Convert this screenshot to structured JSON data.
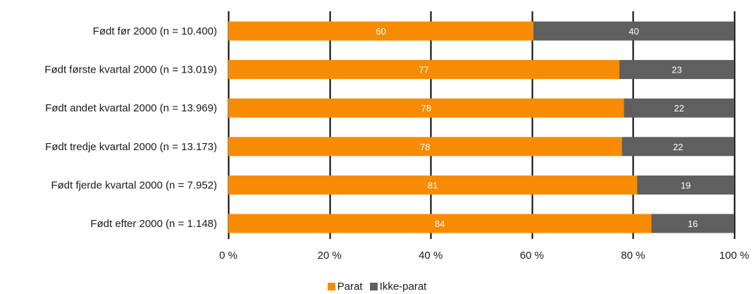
{
  "chart_data": {
    "type": "bar",
    "orientation": "horizontal",
    "stacked": true,
    "categories": [
      "Født før 2000 (n = 10.400)",
      "Født første kvartal 2000 (n = 13.019)",
      "Født andet kvartal 2000 (n = 13.969)",
      "Født tredje kvartal 2000 (n = 13.173)",
      "Født fjerde kvartal 2000 (n = 7.952)",
      "Født efter 2000 (n = 1.148)"
    ],
    "series": [
      {
        "name": "Parat",
        "color": "#f78b04",
        "values": [
          60.3,
          77.3,
          78.2,
          77.8,
          80.8,
          83.6
        ],
        "labels": [
          "60",
          "77",
          "78",
          "78",
          "81",
          "84"
        ]
      },
      {
        "name": "Ikke-parat",
        "color": "#5f5f5f",
        "values": [
          39.7,
          22.7,
          21.8,
          22.2,
          19.2,
          16.4
        ],
        "labels": [
          "40",
          "23",
          "22",
          "22",
          "19",
          "16"
        ]
      }
    ],
    "xlim": [
      0,
      100
    ],
    "xticks": [
      0,
      20,
      40,
      60,
      80,
      100
    ],
    "xtick_labels": [
      "0 %",
      "20 %",
      "40 %",
      "60 %",
      "80 %",
      "100 %"
    ],
    "grid": "vertical",
    "legend_position": "bottom-center"
  }
}
